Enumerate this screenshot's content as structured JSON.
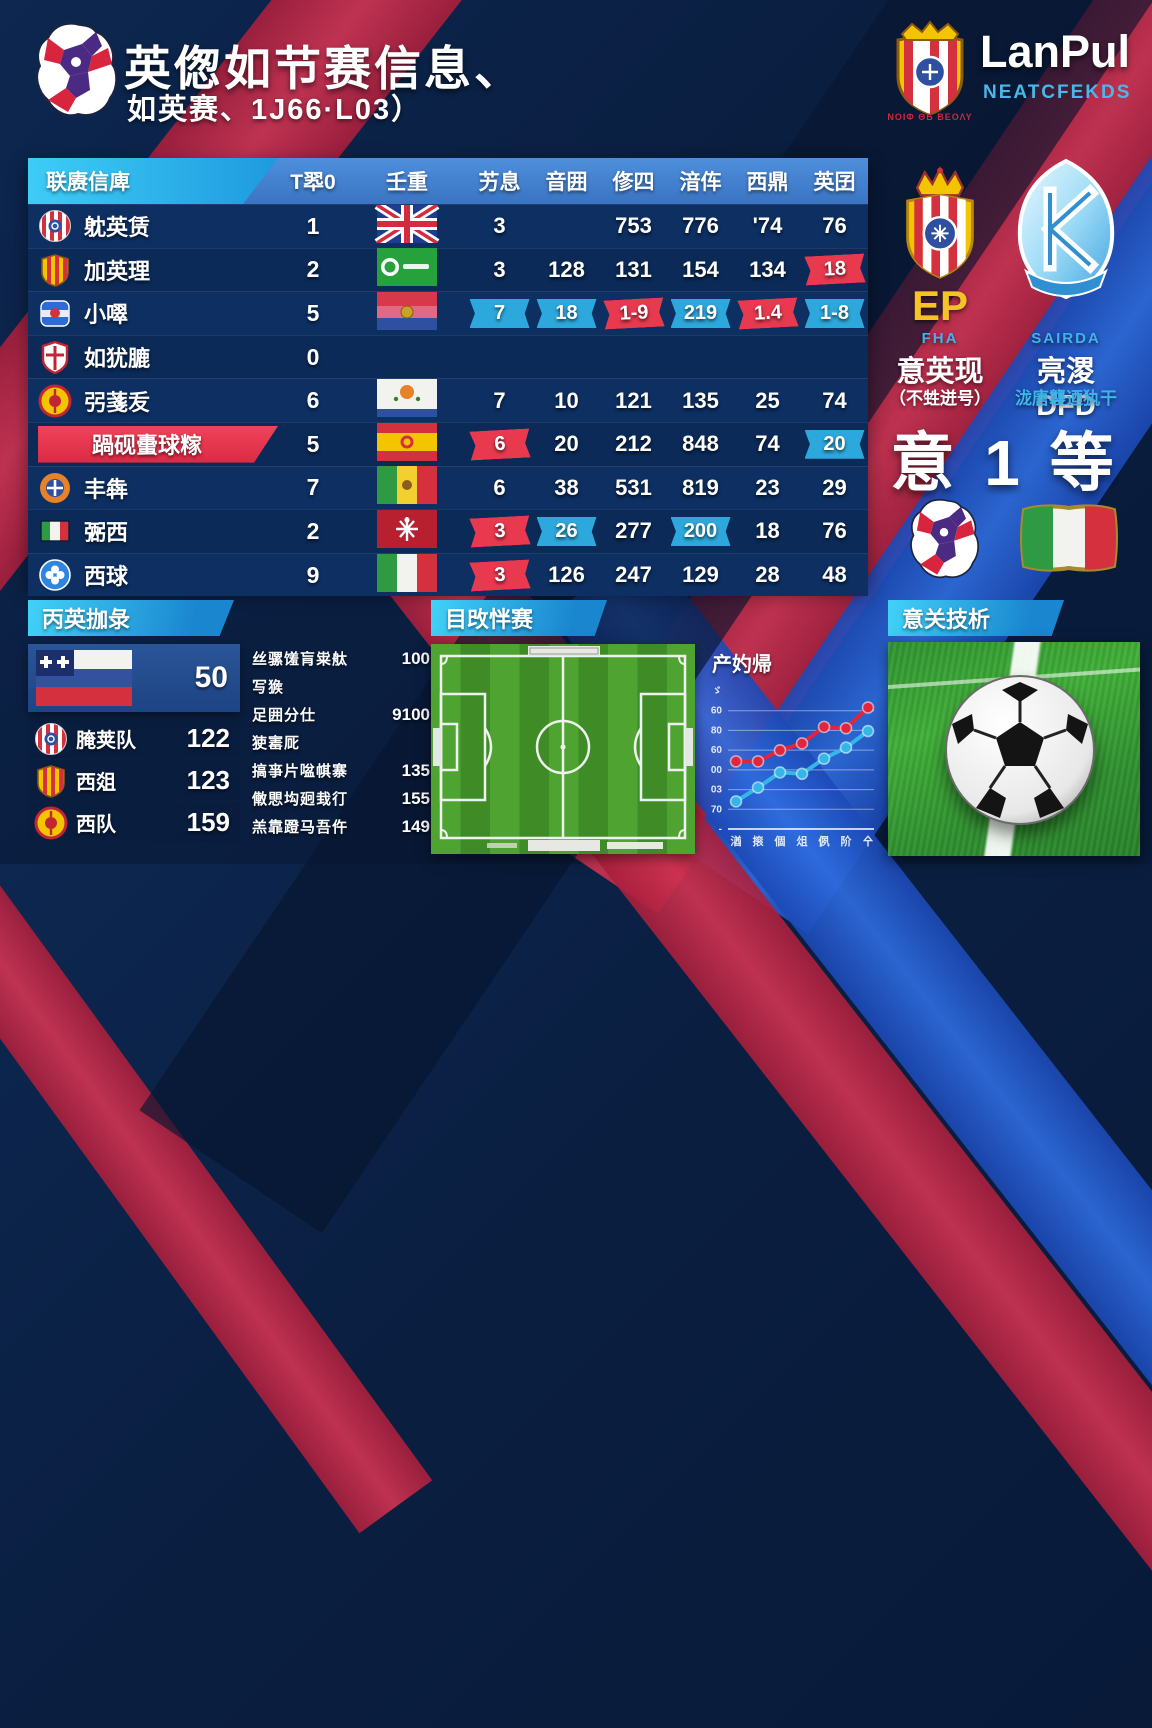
{
  "header": {
    "title": "英偬如节赛信息、",
    "subtitle": "如英赛、1J66·L03）"
  },
  "brand": {
    "name": "LanPul",
    "subtitle": "NEATCFEKDS",
    "crest_caption": "ΝΟΙΦ ΘБ ΒΕΟΛΥ"
  },
  "table": {
    "headers": [
      "联赓信庳",
      "T翆0",
      "壬重",
      "艻息",
      "音囲",
      "俢四",
      "湆伡",
      "西鼎",
      "英囝"
    ],
    "rows": [
      {
        "crest": "crest-striped-round",
        "name": "躭英赁",
        "rank": "1",
        "flag": "flag-uk",
        "highlight": false,
        "cells": [
          {
            "v": "3",
            "s": "plain"
          },
          {
            "v": "",
            "s": "plain"
          },
          {
            "v": "753",
            "s": "plain"
          },
          {
            "v": "776",
            "s": "plain"
          },
          {
            "v": "'74",
            "s": "plain"
          },
          {
            "v": "76",
            "s": "plain"
          }
        ]
      },
      {
        "crest": "crest-gold-shield",
        "name": "加英理",
        "rank": "2",
        "flag": "flag-green-badge",
        "highlight": false,
        "cells": [
          {
            "v": "3",
            "s": "plain"
          },
          {
            "v": "128",
            "s": "plain"
          },
          {
            "v": "131",
            "s": "plain"
          },
          {
            "v": "154",
            "s": "plain"
          },
          {
            "v": "134",
            "s": "plain"
          },
          {
            "v": "18",
            "s": "red"
          }
        ]
      },
      {
        "crest": "crest-blue-square",
        "name": "小噿",
        "rank": "5",
        "flag": "flag-rwb",
        "highlight": false,
        "cells": [
          {
            "v": "7",
            "s": "cyan"
          },
          {
            "v": "18",
            "s": "cyan"
          },
          {
            "v": "1-9",
            "s": "red"
          },
          {
            "v": "219",
            "s": "cyan"
          },
          {
            "v": "1.4",
            "s": "red"
          },
          {
            "v": "1-8",
            "s": "cyan"
          }
        ]
      },
      {
        "crest": "crest-red-shield",
        "name": "如犹膔",
        "rank": "0",
        "flag": "none",
        "highlight": false,
        "cells": [
          {
            "v": "",
            "s": "plain"
          },
          {
            "v": "",
            "s": "plain"
          },
          {
            "v": "",
            "s": "plain"
          },
          {
            "v": "",
            "s": "plain"
          },
          {
            "v": "",
            "s": "plain"
          },
          {
            "v": "",
            "s": "plain"
          }
        ]
      },
      {
        "crest": "crest-gold-round",
        "name": "弜菚叐",
        "rank": "6",
        "flag": "flag-white-orange",
        "highlight": false,
        "cells": [
          {
            "v": "7",
            "s": "plain"
          },
          {
            "v": "10",
            "s": "plain"
          },
          {
            "v": "121",
            "s": "plain"
          },
          {
            "v": "135",
            "s": "plain"
          },
          {
            "v": "25",
            "s": "plain"
          },
          {
            "v": "74",
            "s": "plain"
          }
        ]
      },
      {
        "crest": "none",
        "name": "踻砚蟗球糘",
        "rank": "5",
        "flag": "flag-spain",
        "highlight": true,
        "cells": [
          {
            "v": "6",
            "s": "red"
          },
          {
            "v": "20",
            "s": "plain"
          },
          {
            "v": "212",
            "s": "plain"
          },
          {
            "v": "848",
            "s": "plain"
          },
          {
            "v": "74",
            "s": "plain"
          },
          {
            "v": "20",
            "s": "cyan"
          }
        ]
      },
      {
        "crest": "crest-orange-round",
        "name": "丰犇",
        "rank": "7",
        "flag": "flag-mali",
        "highlight": false,
        "cells": [
          {
            "v": "6",
            "s": "plain"
          },
          {
            "v": "38",
            "s": "plain"
          },
          {
            "v": "531",
            "s": "plain"
          },
          {
            "v": "819",
            "s": "plain"
          },
          {
            "v": "23",
            "s": "plain"
          },
          {
            "v": "29",
            "s": "plain"
          }
        ]
      },
      {
        "crest": "crest-italy",
        "name": "弻西",
        "rank": "2",
        "flag": "flag-red-emblem",
        "highlight": false,
        "cells": [
          {
            "v": "3",
            "s": "red"
          },
          {
            "v": "26",
            "s": "cyan"
          },
          {
            "v": "277",
            "s": "plain"
          },
          {
            "v": "200",
            "s": "cyan"
          },
          {
            "v": "18",
            "s": "plain"
          },
          {
            "v": "76",
            "s": "plain"
          }
        ]
      },
      {
        "crest": "crest-clover",
        "name": "西球",
        "rank": "9",
        "flag": "flag-italy",
        "highlight": false,
        "cells": [
          {
            "v": "3",
            "s": "red"
          },
          {
            "v": "126",
            "s": "plain"
          },
          {
            "v": "247",
            "s": "plain"
          },
          {
            "v": "129",
            "s": "plain"
          },
          {
            "v": "28",
            "s": "plain"
          },
          {
            "v": "48",
            "s": "plain"
          }
        ]
      }
    ]
  },
  "right_panel": {
    "ep_code": "EP",
    "ep_tag": "FHA",
    "ep_title": "意英现",
    "ep_note": "（不甡迸号）",
    "k_tag": "SAIRDA",
    "k_title": "亮溭 DFD",
    "k_note": "泷唐襲迺犱干",
    "verdict": "意 1 等"
  },
  "sections": {
    "bottom_left_title": "丙英拁彔",
    "middle_title": "目攺怑赛",
    "right_title": "意关技析"
  },
  "bottom_left": {
    "flag_value": "50",
    "items": [
      {
        "icon": "crest-striped-round",
        "label": "腌荚队",
        "value": "122"
      },
      {
        "icon": "crest-gold-shield",
        "label": "西爼",
        "value": "123"
      },
      {
        "icon": "crest-gold-round",
        "label": "西队",
        "value": "159"
      }
    ]
  },
  "stats": [
    {
      "label": "丝骡馐肓粜舦",
      "value": "100"
    },
    {
      "label": "写㺅",
      "value": ""
    },
    {
      "label": "足囲分仕",
      "value": "9100"
    },
    {
      "label": "㹬寚厑",
      "value": ""
    },
    {
      "label": "搞亊片㖹帺寨",
      "value": "135"
    },
    {
      "label": "僌愳㘬㢠㘽㣔",
      "value": "155"
    },
    {
      "label": "羔靠蹬马吾仵",
      "value": "149"
    }
  ],
  "chart_data": {
    "type": "line",
    "title": "产妁帰",
    "x_tick_labels": [
      "湭",
      "㨰",
      "個",
      "俎",
      "㑉",
      "阶",
      "㐃"
    ],
    "y_tick_labels": [
      "ゞ",
      "60",
      "80",
      "60",
      "00",
      "03",
      "70",
      "-"
    ],
    "ylim": [
      0,
      100
    ],
    "grid": true,
    "legend": "none",
    "series": [
      {
        "name": "red-series",
        "color": "#e0263c",
        "values": [
          49,
          49,
          57,
          62,
          74,
          73,
          88
        ]
      },
      {
        "name": "cyan-series",
        "color": "#35b6e8",
        "values": [
          20,
          30,
          41,
          40,
          51,
          59,
          71
        ]
      }
    ]
  },
  "colors": {
    "accent_cyan": "#2da8dc",
    "accent_red": "#e8394f",
    "header_blue": "#4484d4",
    "gold": "#f5c324",
    "bg_navy": "#0b2347"
  }
}
